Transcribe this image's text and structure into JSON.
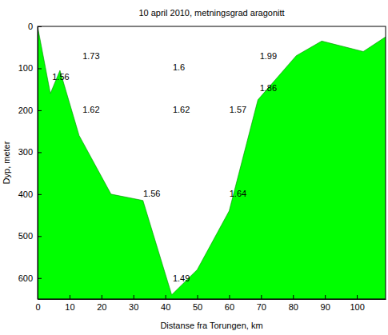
{
  "chart_data": {
    "type": "area",
    "title": "10 april 2010, metningsgrad aragonitt",
    "x_label": "Distanse fra Torungen, km",
    "y_label": "Dyp, meter",
    "x": [
      0,
      4,
      7,
      13,
      23,
      33,
      42,
      50,
      60,
      69,
      81,
      89,
      102,
      109
    ],
    "values": [
      0,
      160,
      105,
      260,
      400,
      415,
      640,
      580,
      440,
      175,
      70,
      35,
      60,
      25
    ],
    "color": "#00ff00",
    "xlim": [
      0,
      109
    ],
    "xticks": [
      0,
      10,
      20,
      30,
      40,
      50,
      60,
      70,
      80,
      90,
      100
    ],
    "ylim": [
      0,
      650
    ],
    "yticks": [
      0,
      100,
      200,
      300,
      400,
      500,
      600
    ],
    "annotations": [
      {
        "x": 7.25,
        "y": 122,
        "value": 1.56
      },
      {
        "x": 16.75,
        "y": 73,
        "value": 1.73
      },
      {
        "x": 16.75,
        "y": 201,
        "value": 1.62
      },
      {
        "x": 44.25,
        "y": 99,
        "value": 1.6
      },
      {
        "x": 45,
        "y": 201,
        "value": 1.62
      },
      {
        "x": 62.75,
        "y": 201,
        "value": 1.57
      },
      {
        "x": 72.25,
        "y": 73,
        "value": 1.99
      },
      {
        "x": 72.25,
        "y": 149,
        "value": 1.86
      },
      {
        "x": 35.75,
        "y": 401,
        "value": 1.56
      },
      {
        "x": 62.75,
        "y": 401,
        "value": 1.64
      },
      {
        "x": 45,
        "y": 602,
        "value": 1.49
      }
    ]
  }
}
